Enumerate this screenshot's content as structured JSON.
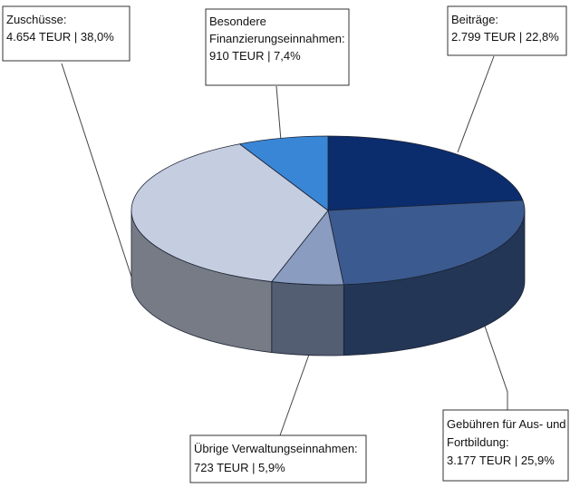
{
  "chart_data": {
    "type": "pie",
    "title": "",
    "unit": "TEUR",
    "three_d": true,
    "legend": "none",
    "slices": [
      {
        "name": "Beiträge:",
        "value_text": "2.799 TEUR  | 22,8%",
        "value": 2799,
        "percent": 22.8,
        "color": "#0b2d6e"
      },
      {
        "name": "Gebühren für Aus- und Fortbildung:",
        "name_line1": "Gebühren für Aus- und",
        "name_line2": "Fortbildung:",
        "value_text": "3.177 TEUR  | 25,9%",
        "value": 3177,
        "percent": 25.9,
        "color": "#3b5a8f"
      },
      {
        "name": "Übrige Verwaltungseinnahmen:",
        "value_text": "723 TEUR  | 5,9%",
        "value": 723,
        "percent": 5.9,
        "color": "#8a9cc0"
      },
      {
        "name": "Zuschüsse:",
        "value_text": "4.654 TEUR  | 38,0%",
        "value": 4654,
        "percent": 38.0,
        "color": "#c5cde0"
      },
      {
        "name": "Besondere Finanzierungseinnahmen:",
        "name_line1": "Besondere",
        "name_line2": "Finanzierungseinnahmen:",
        "value_text": "910 TEUR  | 7,4%",
        "value": 910,
        "percent": 7.4,
        "color": "#3a86d6"
      }
    ]
  }
}
